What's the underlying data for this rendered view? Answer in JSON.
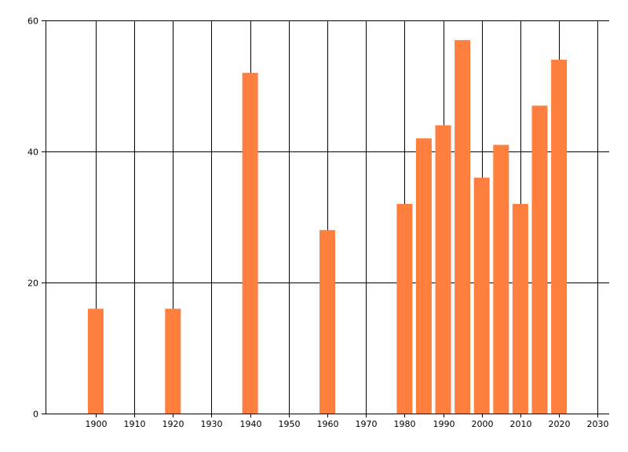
{
  "chart_data": {
    "type": "bar",
    "x": [
      1900,
      1920,
      1940,
      1960,
      1980,
      1985,
      1990,
      1995,
      2000,
      2005,
      2010,
      2015,
      2020
    ],
    "values": [
      16,
      16,
      52,
      28,
      32,
      42,
      44,
      57,
      36,
      41,
      32,
      47,
      54
    ],
    "xlim": [
      1887,
      2033
    ],
    "ylim": [
      0,
      60
    ],
    "x_ticks": [
      "1900",
      "1910",
      "1920",
      "1930",
      "1940",
      "1950",
      "1960",
      "1970",
      "1980",
      "1990",
      "2000",
      "2010",
      "2020",
      "2030"
    ],
    "y_ticks": [
      "0",
      "20",
      "40",
      "60"
    ],
    "title": "",
    "xlabel": "",
    "ylabel": "",
    "grid": true,
    "bar_color": "#ff7f3f",
    "grid_color": "#000000"
  }
}
